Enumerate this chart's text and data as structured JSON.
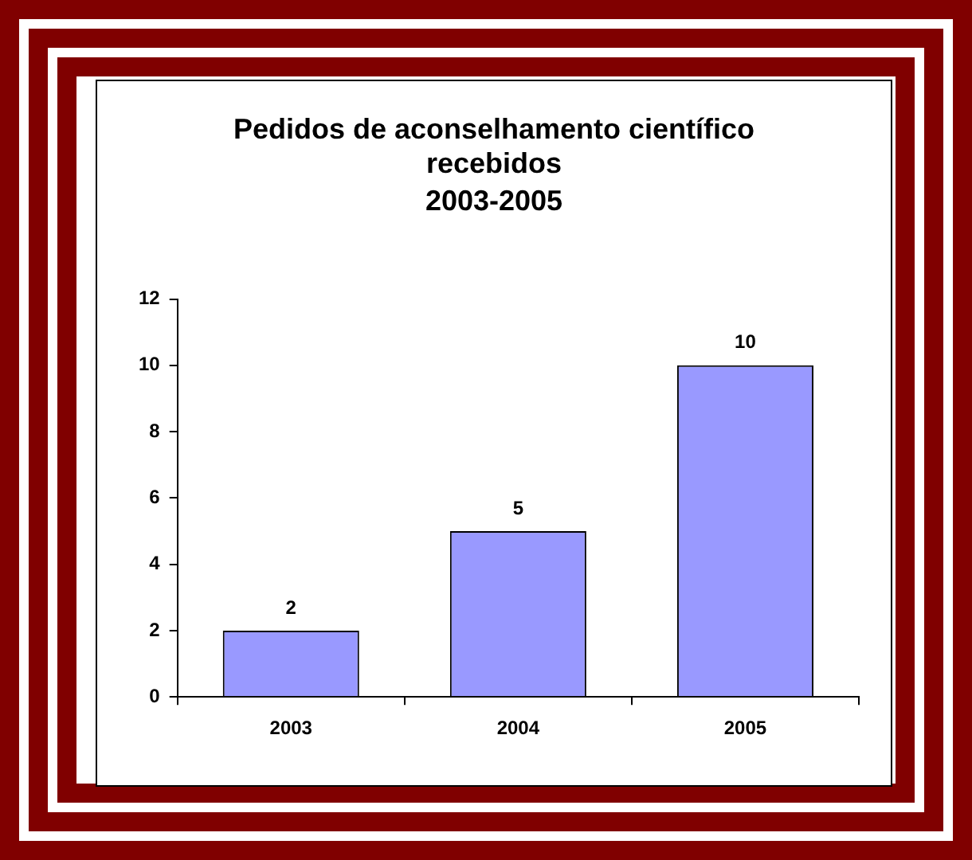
{
  "chart_data": {
    "type": "bar",
    "title": "Pedidos de aconselhamento científico recebidos",
    "subtitle": "2003-2005",
    "categories": [
      "2003",
      "2004",
      "2005"
    ],
    "values": [
      2,
      5,
      10
    ],
    "color": "#9999ff",
    "ylim": [
      0,
      12
    ],
    "yticks": [
      0,
      2,
      4,
      6,
      8,
      10,
      12
    ],
    "grid": false,
    "legend": false,
    "data_labels": true
  }
}
